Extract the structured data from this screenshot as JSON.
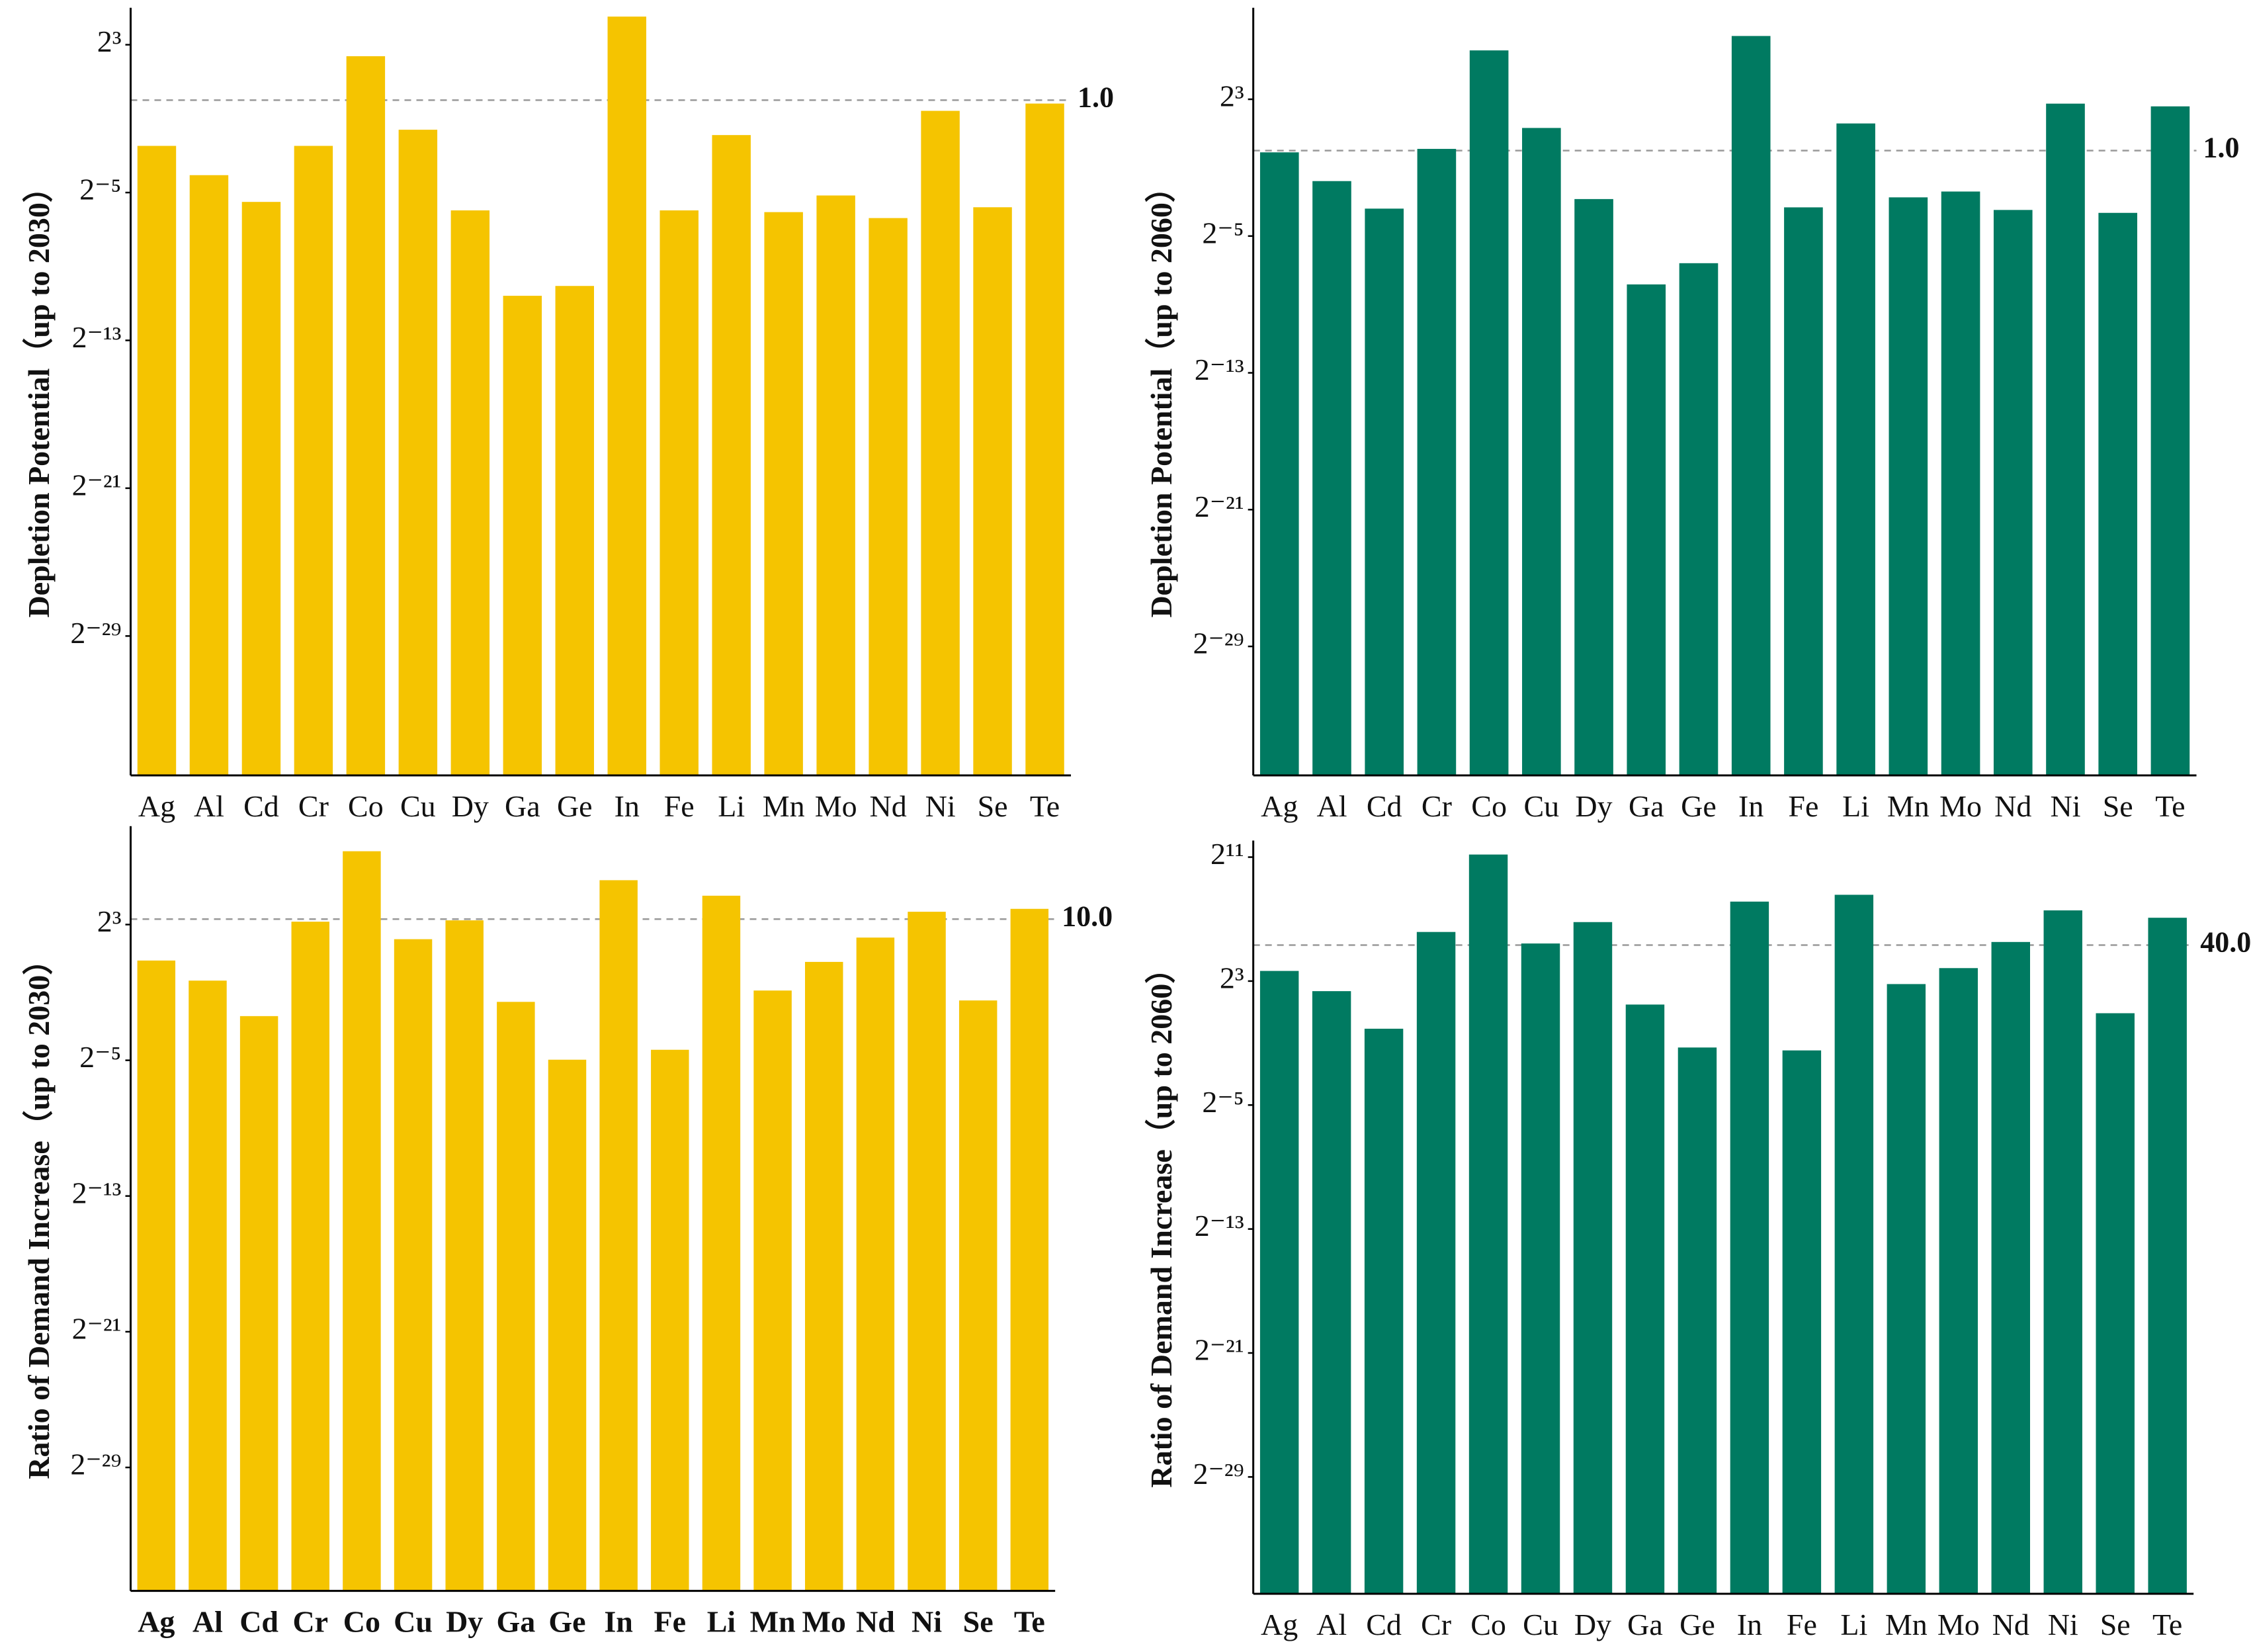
{
  "chart_data": [
    {
      "type": "bar",
      "log_scale": true,
      "color": "#f5c400",
      "y_label": "Depletion Potential（up to 2030）",
      "categories": [
        "Ag",
        "Al",
        "Cd",
        "Cr",
        "Co",
        "Cu",
        "Dy",
        "Ga",
        "Ge",
        "In",
        "Fe",
        "Li",
        "Mn",
        "Mo",
        "Nd",
        "Ni",
        "Se",
        "Te"
      ],
      "values": [
        0.18,
        0.06,
        0.022,
        0.18,
        5.2,
        0.33,
        0.016,
        0.00065,
        0.00094,
        23,
        0.016,
        0.27,
        0.015,
        0.028,
        0.012,
        0.67,
        0.018,
        0.88
      ],
      "ylim": [
        1e-11,
        25
      ],
      "yticks": [
        {
          "value": 8,
          "label": "2³"
        },
        {
          "value": 0.03125,
          "label": "2⁻⁵"
        },
        {
          "value": 0.0001220703125,
          "label": "2⁻¹³"
        },
        {
          "value": 4.76837158203125e-07,
          "label": "2⁻²¹"
        },
        {
          "value": 1.862645149230957e-09,
          "label": "2⁻²⁹"
        }
      ],
      "reference": {
        "value": 1,
        "label": "1.0"
      }
    },
    {
      "type": "bar",
      "log_scale": true,
      "color": "#007a61",
      "y_label": "Depletion Potential（up to 2060）",
      "categories": [
        "Ag",
        "Al",
        "Cd",
        "Cr",
        "Co",
        "Cu",
        "Dy",
        "Ga",
        "Ge",
        "In",
        "Fe",
        "Li",
        "Mn",
        "Mo",
        "Nd",
        "Ni",
        "Se",
        "Te"
      ],
      "values": [
        0.93,
        0.29,
        0.095,
        1.07,
        58,
        2.5,
        0.14,
        0.0044,
        0.0104,
        104,
        0.1,
        3.0,
        0.15,
        0.19,
        0.09,
        6.7,
        0.08,
        6.0
      ],
      "ylim": [
        1e-11,
        250
      ],
      "yticks": [
        {
          "value": 8,
          "label": "2³"
        },
        {
          "value": 0.03125,
          "label": "2⁻⁵"
        },
        {
          "value": 0.0001220703125,
          "label": "2⁻¹³"
        },
        {
          "value": 4.76837158203125e-07,
          "label": "2⁻²¹"
        },
        {
          "value": 1.862645149230957e-09,
          "label": "2⁻²⁹"
        }
      ],
      "reference": {
        "value": 1,
        "label": "1.0"
      }
    },
    {
      "type": "bar",
      "log_scale": true,
      "color": "#f5c400",
      "bold_categories": true,
      "y_label": "Ratio of Demand Increase（up to 2030）",
      "categories": [
        "Ag",
        "Al",
        "Cd",
        "Cr",
        "Co",
        "Cu",
        "Dy",
        "Ga",
        "Ge",
        "In",
        "Fe",
        "Li",
        "Mn",
        "Mo",
        "Nd",
        "Ni",
        "Se",
        "Te"
      ],
      "values": [
        1.84,
        0.81,
        0.19,
        9.0,
        160,
        4.4,
        9.5,
        0.34,
        0.032,
        49,
        0.048,
        26,
        0.54,
        1.74,
        4.7,
        13.5,
        0.36,
        15.2
      ],
      "ylim": [
        1.2e-11,
        340
      ],
      "yticks": [
        {
          "value": 8,
          "label": "2³"
        },
        {
          "value": 0.03125,
          "label": "2⁻⁵"
        },
        {
          "value": 0.0001220703125,
          "label": "2⁻¹³"
        },
        {
          "value": 4.76837158203125e-07,
          "label": "2⁻²¹"
        },
        {
          "value": 1.862645149230957e-09,
          "label": "2⁻²⁹"
        }
      ],
      "reference": {
        "value": 10,
        "label": "10.0"
      }
    },
    {
      "type": "bar",
      "log_scale": true,
      "color": "#007a61",
      "y_label": "Ratio of Demand Increase（up to 2060）",
      "categories": [
        "Ag",
        "Al",
        "Cd",
        "Cr",
        "Co",
        "Cu",
        "Dy",
        "Ga",
        "Ge",
        "In",
        "Fe",
        "Li",
        "Mn",
        "Mo",
        "Nd",
        "Ni",
        "Se",
        "Te"
      ],
      "values": [
        12.6,
        5.1,
        0.95,
        72,
        2300,
        43,
        112,
        2.8,
        0.41,
        280,
        0.36,
        380,
        7.0,
        14.3,
        46,
        189,
        1.9,
        136
      ],
      "ylim": [
        1e-11,
        3200
      ],
      "yticks": [
        {
          "value": 2048,
          "label": "2¹¹"
        },
        {
          "value": 8,
          "label": "2³"
        },
        {
          "value": 0.03125,
          "label": "2⁻⁵"
        },
        {
          "value": 0.0001220703125,
          "label": "2⁻¹³"
        },
        {
          "value": 4.76837158203125e-07,
          "label": "2⁻²¹"
        },
        {
          "value": 1.862645149230957e-09,
          "label": "2⁻²⁹"
        }
      ],
      "reference": {
        "value": 40,
        "label": "40.0"
      }
    }
  ]
}
